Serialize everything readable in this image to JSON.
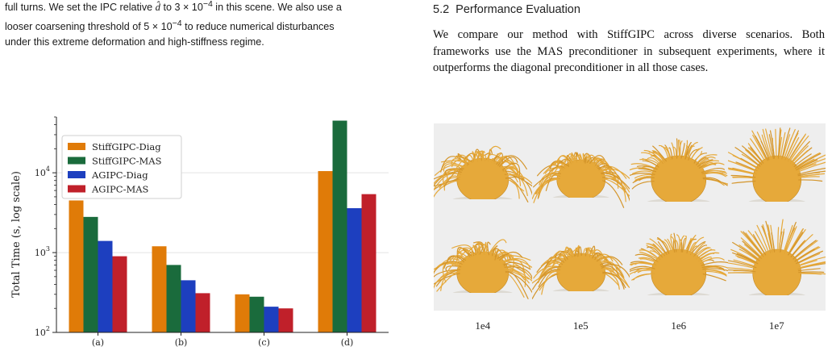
{
  "left_paragraph": {
    "line1_pre": "full turns. We set the IPC relative ",
    "line1_symbol": "d̂",
    "line1_mid": " to 3 × 10",
    "line1_exp": "−4",
    "line1_post": " in this scene. We also use a",
    "line2_pre": "looser coarsening threshold of 5 × 10",
    "line2_exp": "−4",
    "line2_post": " to reduce numerical disturbances",
    "line3": "under this extreme deformation and high-stiffness regime."
  },
  "section": {
    "number": "5.2",
    "title": "Performance Evaluation",
    "paragraph": "We compare our method with StiffGIPC across diverse scenarios. Both frameworks use the MAS preconditioner in subsequent experiments, where it outperforms the diagonal preconditioner in all those cases."
  },
  "chart_data": {
    "type": "bar",
    "ylabel": "Total Time (s, log scale)",
    "yscale": "log",
    "ylim": [
      100,
      50000
    ],
    "yticks": [
      {
        "value": 100,
        "mantissa": "10",
        "exp": "2"
      },
      {
        "value": 1000,
        "mantissa": "10",
        "exp": "3"
      },
      {
        "value": 10000,
        "mantissa": "10",
        "exp": "4"
      }
    ],
    "categories": [
      "(a)",
      "(b)",
      "(c)",
      "(d)"
    ],
    "series": [
      {
        "name": "StiffGIPC-Diag",
        "color": "#e07b08",
        "values": [
          4500,
          1200,
          300,
          10500
        ]
      },
      {
        "name": "StiffGIPC-MAS",
        "color": "#1a6b3c",
        "values": [
          2800,
          700,
          280,
          45000
        ]
      },
      {
        "name": "AGIPC-Diag",
        "color": "#1d3fbf",
        "values": [
          1400,
          450,
          210,
          3600
        ]
      },
      {
        "name": "AGIPC-MAS",
        "color": "#c0202a",
        "values": [
          900,
          310,
          200,
          5400
        ]
      }
    ],
    "legend_position": "top-left",
    "grid": "horizontal"
  },
  "figure": {
    "stiffness_labels": [
      "1e4",
      "1e5",
      "1e6",
      "1e7"
    ],
    "hair_color": "#e6a93a"
  }
}
